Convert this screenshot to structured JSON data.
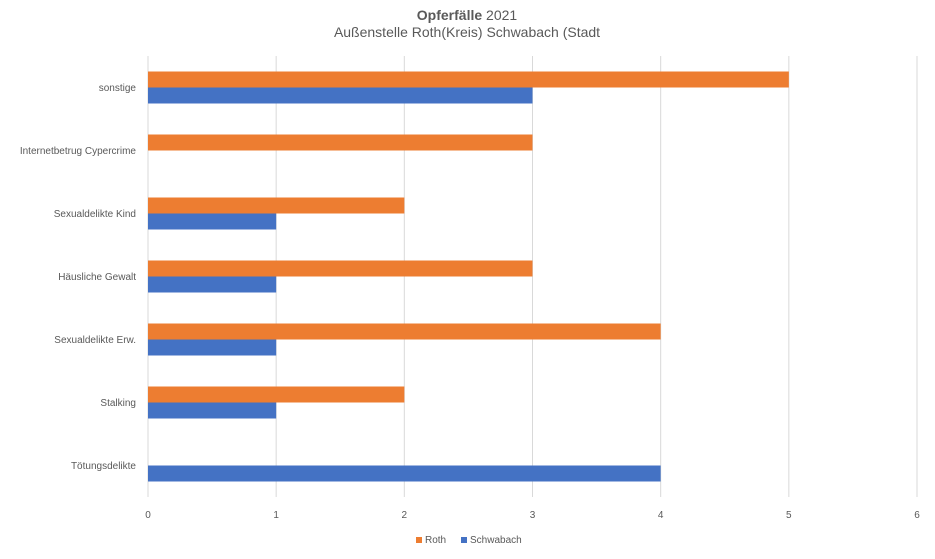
{
  "chart_data": {
    "type": "bar",
    "orientation": "horizontal",
    "title_bold": "Opferfälle",
    "title_rest": "2021",
    "subtitle": "Außenstelle Roth(Kreis) Schwabach (Stadt",
    "categories": [
      "sonstige",
      "Internetbetrug Cypercrime",
      "Sexualdelikte Kind",
      "Häusliche Gewalt",
      "Sexualdelikte Erw.",
      "Stalking",
      "Tötungsdelikte"
    ],
    "series": [
      {
        "name": "Roth",
        "color": "#ed7d31",
        "values": [
          5,
          3,
          2,
          3,
          4,
          2,
          0
        ]
      },
      {
        "name": "Schwabach",
        "color": "#4472c4",
        "values": [
          3,
          0,
          1,
          1,
          1,
          1,
          4
        ]
      }
    ],
    "xlim": [
      0,
      6
    ],
    "xticks": [
      "0",
      "1",
      "2",
      "3",
      "4",
      "5",
      "6"
    ],
    "grid": true,
    "legend_position": "bottom"
  }
}
